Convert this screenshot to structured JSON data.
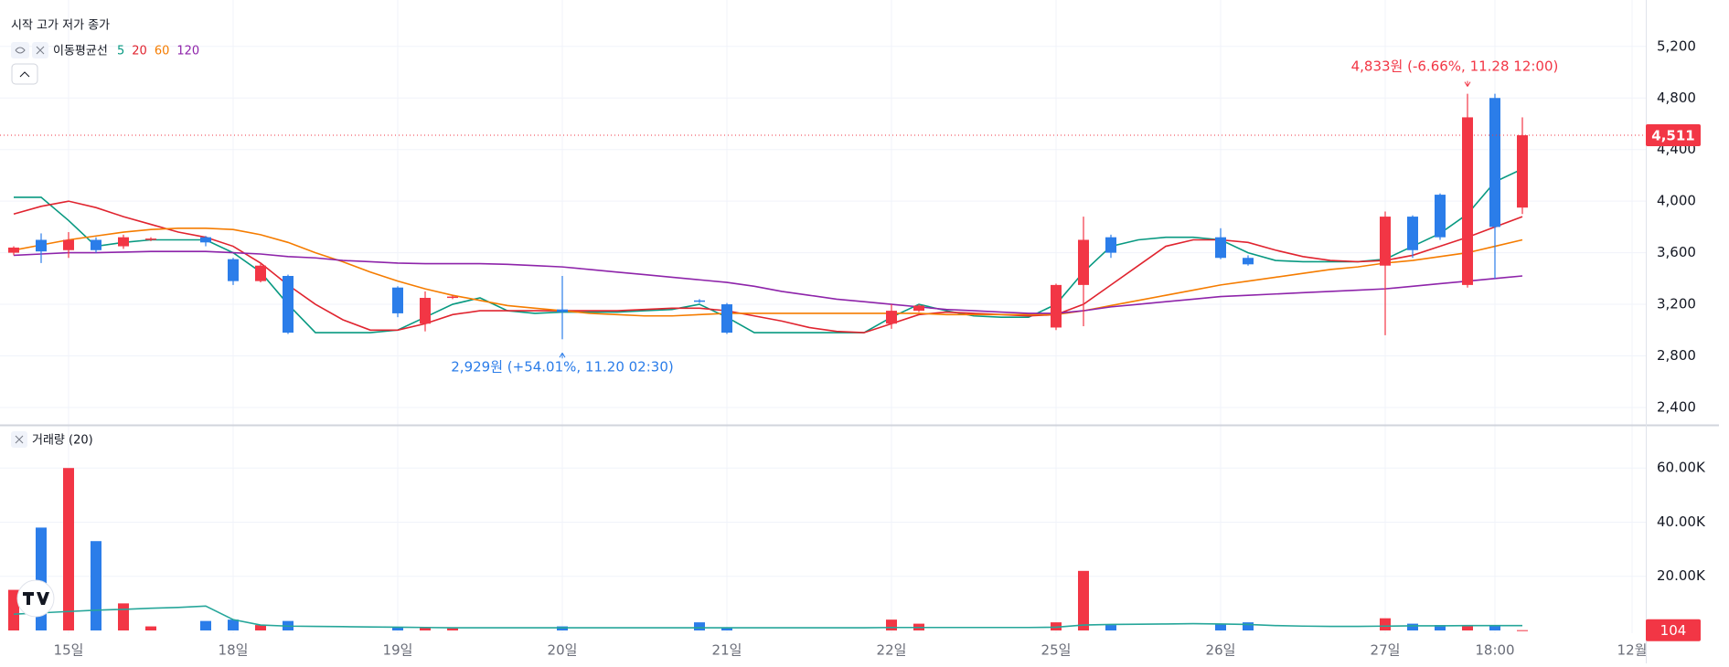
{
  "chart_data": {
    "type": "candlestick",
    "legend_title": "시작 고가 저가 종가",
    "categories": [
      null,
      null,
      "15일",
      null,
      null,
      null,
      null,
      null,
      "18일",
      null,
      null,
      null,
      null,
      null,
      "19일",
      null,
      null,
      null,
      null,
      null,
      "20일",
      null,
      null,
      null,
      null,
      null,
      "21일",
      null,
      null,
      null,
      null,
      null,
      "22일",
      null,
      null,
      null,
      null,
      null,
      "25일",
      null,
      null,
      null,
      null,
      null,
      "26일",
      null,
      null,
      null,
      null,
      null,
      "27일",
      null,
      null,
      null,
      "18:00",
      null,
      null,
      null,
      null,
      "12월"
    ],
    "open": [
      3600,
      3700,
      3620,
      3700,
      3650,
      3700,
      null,
      3720,
      3550,
      3380,
      3420,
      null,
      null,
      null,
      3330,
      3050,
      3250,
      null,
      null,
      null,
      3160,
      null,
      null,
      null,
      null,
      3230,
      3200,
      null,
      null,
      null,
      null,
      null,
      3050,
      3150,
      null,
      null,
      null,
      null,
      3020,
      3350,
      3720,
      null,
      null,
      null,
      3720,
      3560,
      null,
      null,
      null,
      null,
      3500,
      3880,
      4050,
      3350,
      4800,
      3950,
      null,
      null,
      null,
      null
    ],
    "high": [
      3650,
      3750,
      3760,
      3720,
      3740,
      3720,
      null,
      3730,
      3560,
      3520,
      3430,
      null,
      null,
      null,
      3340,
      3300,
      3270,
      null,
      null,
      null,
      3420,
      null,
      null,
      null,
      null,
      3240,
      3210,
      null,
      null,
      null,
      null,
      null,
      3200,
      3200,
      null,
      null,
      null,
      null,
      3360,
      3880,
      3740,
      null,
      null,
      null,
      3790,
      3580,
      null,
      null,
      null,
      null,
      3920,
      3890,
      4060,
      4833,
      4833,
      4650,
      null,
      null,
      null,
      null
    ],
    "low": [
      3580,
      3520,
      3560,
      3600,
      3630,
      3690,
      null,
      3650,
      3350,
      3370,
      2970,
      null,
      null,
      null,
      3100,
      2990,
      3240,
      null,
      null,
      null,
      2929,
      null,
      null,
      null,
      null,
      3210,
      2970,
      null,
      null,
      null,
      null,
      null,
      3010,
      3140,
      null,
      null,
      null,
      null,
      3000,
      3030,
      3560,
      null,
      null,
      null,
      3550,
      3500,
      null,
      null,
      null,
      null,
      2960,
      3560,
      3700,
      3330,
      3400,
      3900,
      null,
      null,
      null,
      null
    ],
    "close": [
      3640,
      3610,
      3700,
      3620,
      3720,
      3710,
      null,
      3680,
      3380,
      3500,
      2980,
      null,
      null,
      null,
      3130,
      3250,
      3260,
      null,
      null,
      null,
      3140,
      null,
      null,
      null,
      null,
      3220,
      2980,
      null,
      null,
      null,
      null,
      null,
      3150,
      3190,
      null,
      null,
      null,
      null,
      3350,
      3700,
      3600,
      null,
      null,
      null,
      3560,
      3510,
      null,
      null,
      null,
      null,
      3880,
      3620,
      3720,
      4650,
      3800,
      4511,
      null,
      null,
      null,
      null
    ],
    "up_color": "#f23645",
    "down_color": "#2b7de9",
    "ylim": [
      2265,
      5560
    ],
    "yticks": [
      {
        "value": 2400,
        "label": "2,400"
      },
      {
        "value": 2800,
        "label": "2,800"
      },
      {
        "value": 3200,
        "label": "3,200"
      },
      {
        "value": 3600,
        "label": "3,600"
      },
      {
        "value": 4000,
        "label": "4,000"
      },
      {
        "value": 4400,
        "label": "4,400"
      },
      {
        "value": 4800,
        "label": "4,800"
      },
      {
        "value": 5200,
        "label": "5,200"
      }
    ],
    "grid": true,
    "indicator_name": "이동평균선",
    "series": [
      {
        "name": "5",
        "color": "#089981",
        "values": [
          4030,
          4030,
          3850,
          3650,
          3680,
          3700,
          3700,
          3700,
          3600,
          3450,
          3200,
          2980,
          2980,
          2980,
          3000,
          3100,
          3200,
          3250,
          3150,
          3130,
          3140,
          3140,
          3140,
          3150,
          3160,
          3200,
          3100,
          2980,
          2980,
          2980,
          2980,
          2980,
          3100,
          3200,
          3150,
          3110,
          3100,
          3100,
          3200,
          3450,
          3650,
          3700,
          3720,
          3720,
          3700,
          3600,
          3540,
          3530,
          3530,
          3530,
          3550,
          3650,
          3750,
          3900,
          4150,
          4250,
          null,
          null,
          null,
          null
        ]
      },
      {
        "name": "20",
        "color": "#e0242f",
        "values": [
          3900,
          3960,
          4000,
          3950,
          3880,
          3820,
          3760,
          3720,
          3650,
          3520,
          3350,
          3200,
          3080,
          3000,
          3000,
          3050,
          3120,
          3150,
          3150,
          3150,
          3150,
          3150,
          3150,
          3160,
          3170,
          3170,
          3150,
          3110,
          3070,
          3020,
          2990,
          2980,
          3050,
          3120,
          3140,
          3130,
          3120,
          3110,
          3120,
          3200,
          3350,
          3500,
          3650,
          3700,
          3700,
          3680,
          3620,
          3570,
          3540,
          3530,
          3540,
          3580,
          3650,
          3720,
          3800,
          3880,
          null,
          null,
          null,
          null
        ]
      },
      {
        "name": "60",
        "color": "#f57c00",
        "values": [
          3620,
          3660,
          3700,
          3730,
          3760,
          3780,
          3790,
          3790,
          3780,
          3740,
          3680,
          3600,
          3530,
          3450,
          3380,
          3320,
          3270,
          3230,
          3190,
          3170,
          3150,
          3130,
          3120,
          3110,
          3110,
          3120,
          3130,
          3130,
          3130,
          3130,
          3130,
          3130,
          3130,
          3130,
          3120,
          3120,
          3120,
          3120,
          3120,
          3150,
          3190,
          3230,
          3270,
          3310,
          3350,
          3380,
          3410,
          3440,
          3470,
          3490,
          3520,
          3540,
          3570,
          3600,
          3650,
          3700,
          null,
          null,
          null,
          null
        ]
      },
      {
        "name": "120",
        "color": "#8e24aa",
        "values": [
          3580,
          3590,
          3600,
          3600,
          3605,
          3610,
          3610,
          3610,
          3600,
          3590,
          3570,
          3560,
          3540,
          3530,
          3520,
          3515,
          3515,
          3515,
          3510,
          3500,
          3490,
          3470,
          3450,
          3430,
          3410,
          3390,
          3370,
          3340,
          3300,
          3270,
          3240,
          3220,
          3200,
          3180,
          3160,
          3150,
          3140,
          3130,
          3130,
          3150,
          3180,
          3200,
          3220,
          3240,
          3260,
          3270,
          3280,
          3290,
          3300,
          3310,
          3320,
          3340,
          3360,
          3380,
          3400,
          3420,
          null,
          null,
          null,
          null
        ]
      }
    ],
    "annotations": [
      {
        "text": "4,833원 (-6.66%, 11.28 12:00)",
        "color": "#f23645"
      },
      {
        "text": "2,929원 (+54.01%, 11.20 02:30)",
        "color": "#2b7de9"
      }
    ],
    "last_price": {
      "value": 4511,
      "label": "4,511"
    },
    "volume": {
      "title": "거래량 (20)",
      "values": [
        15000,
        38000,
        60000,
        33000,
        10000,
        1500,
        null,
        3500,
        4000,
        2000,
        3500,
        null,
        null,
        null,
        1200,
        1000,
        800,
        null,
        null,
        null,
        1500,
        null,
        null,
        null,
        null,
        3000,
        1000,
        null,
        null,
        null,
        null,
        null,
        4000,
        2500,
        null,
        null,
        null,
        null,
        3000,
        22000,
        2000,
        null,
        null,
        null,
        2500,
        3000,
        null,
        null,
        null,
        null,
        4500,
        2500,
        2000,
        2000,
        1800,
        104,
        null,
        null,
        null,
        null
      ],
      "ylim": [
        0,
        75600
      ],
      "yticks": [
        {
          "value": 20000,
          "label": "20.00K"
        },
        {
          "value": 40000,
          "label": "40.00K"
        },
        {
          "value": 60000,
          "label": "60.00K"
        }
      ],
      "ma_color": "#26a69a",
      "ma_values": [
        6000,
        6500,
        7000,
        7500,
        7800,
        8200,
        8500,
        9000,
        4000,
        2000,
        1600,
        1500,
        1400,
        1300,
        1200,
        1100,
        1000,
        1000,
        1000,
        1000,
        1000,
        1000,
        1000,
        1000,
        1000,
        1000,
        1000,
        1000,
        1000,
        1000,
        1000,
        1000,
        1100,
        1100,
        1100,
        1100,
        1100,
        1100,
        1200,
        2000,
        2200,
        2300,
        2400,
        2500,
        2400,
        2200,
        1800,
        1600,
        1500,
        1500,
        1600,
        1700,
        1700,
        1800,
        1800,
        1800,
        null,
        null,
        null,
        null
      ]
    }
  }
}
